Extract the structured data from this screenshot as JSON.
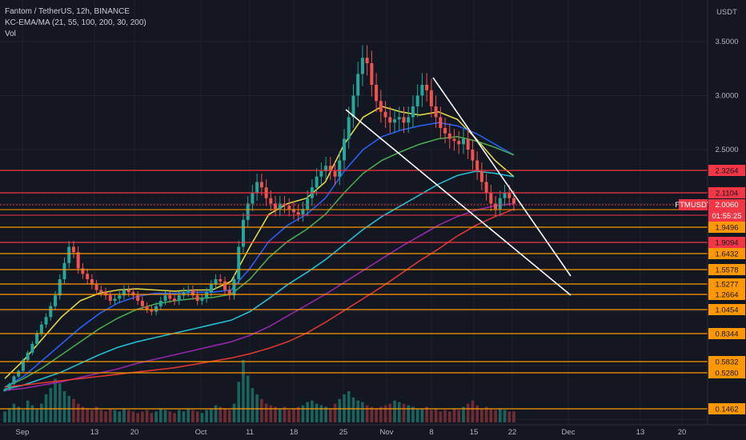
{
  "header": {
    "symbol_line": "Fantom / TetherUS, 12h, BINANCE",
    "indicator_line": "KC-EMA/MA (21, 55, 100, 200, 30, 200)",
    "volume_line": "Vol",
    "currency": "USDT"
  },
  "chart_data": {
    "type": "line",
    "title": "Fantom / TetherUS, 12h, BINANCE",
    "y_ticks": [
      "3.5000",
      "3.0000",
      "2.5000"
    ],
    "x_ticks": [
      "Sep",
      "13",
      "20",
      "Oct",
      "11",
      "18",
      "25",
      "Nov",
      "8",
      "15",
      "22",
      "Dec",
      "13",
      "20"
    ],
    "grid": true,
    "current_price": {
      "symbol": "FTMUSDT",
      "value": "2.0060",
      "countdown": "01:55:25",
      "color": "#f23645"
    },
    "levels": [
      {
        "label": "2.3264",
        "color": "#f23645"
      },
      {
        "label": "2.1104",
        "color": "#f23645"
      },
      {
        "label": "1.9496",
        "color": "#ff9800"
      },
      {
        "label": "1.9094",
        "color": "#f23645"
      },
      {
        "label": "1.6432",
        "color": "#ff9800"
      },
      {
        "label": "1.5578",
        "color": "#ff9800"
      },
      {
        "label": "1.5277",
        "color": "#ff9800"
      },
      {
        "label": "1.2664",
        "color": "#ff9800"
      },
      {
        "label": "1.0454",
        "color": "#ff9800"
      },
      {
        "label": "0.8344",
        "color": "#ff9800"
      },
      {
        "label": "0.5832",
        "color": "#ff9800"
      },
      {
        "label": "0.5280",
        "color": "#ff9800"
      },
      {
        "label": "0.1462",
        "color": "#ff9800"
      }
    ],
    "price_series": [
      0.28,
      0.33,
      0.4,
      0.45,
      0.55,
      0.62,
      0.7,
      0.8,
      0.88,
      0.95,
      1.05,
      1.15,
      1.3,
      1.45,
      1.6,
      1.55,
      1.4,
      1.35,
      1.3,
      1.25,
      1.2,
      1.18,
      1.15,
      1.1,
      1.12,
      1.15,
      1.2,
      1.18,
      1.15,
      1.1,
      1.05,
      1.02,
      1.0,
      1.05,
      1.1,
      1.15,
      1.12,
      1.1,
      1.15,
      1.18,
      1.2,
      1.15,
      1.1,
      1.12,
      1.18,
      1.25,
      1.3,
      1.28,
      1.2,
      1.15,
      1.3,
      1.6,
      1.85,
      2.0,
      2.1,
      2.2,
      2.15,
      2.05,
      2.0,
      1.95,
      2.0,
      1.98,
      1.95,
      1.92,
      1.9,
      1.95,
      2.05,
      2.15,
      2.25,
      2.3,
      2.35,
      2.3,
      2.25,
      2.4,
      2.6,
      2.8,
      3.0,
      3.2,
      3.35,
      3.3,
      3.1,
      2.95,
      2.85,
      2.8,
      2.75,
      2.78,
      2.8,
      2.75,
      2.8,
      2.9,
      3.0,
      3.1,
      3.05,
      2.9,
      2.8,
      2.7,
      2.65,
      2.6,
      2.58,
      2.55,
      2.6,
      2.5,
      2.4,
      2.3,
      2.2,
      2.1,
      2.0,
      1.95,
      2.05,
      2.1,
      2.05,
      2.0
    ],
    "series": [
      {
        "name": "EMA 21",
        "color": "#e8e24a",
        "values": [
          0.38,
          0.55,
          0.75,
          0.95,
          1.1,
          1.17,
          1.2,
          1.21,
          1.2,
          1.19,
          1.2,
          1.2,
          1.28,
          1.6,
          1.9,
          2.0,
          2.05,
          2.2,
          2.55,
          2.8,
          2.9,
          2.85,
          2.82,
          2.85,
          2.78,
          2.6,
          2.4,
          2.25
        ]
      },
      {
        "name": "EMA 55",
        "color": "#2962ff",
        "values": [
          0.3,
          0.4,
          0.55,
          0.7,
          0.85,
          0.98,
          1.08,
          1.14,
          1.17,
          1.17,
          1.18,
          1.18,
          1.2,
          1.4,
          1.65,
          1.8,
          1.9,
          2.05,
          2.3,
          2.5,
          2.62,
          2.68,
          2.72,
          2.75,
          2.72,
          2.65,
          2.55,
          2.45
        ]
      },
      {
        "name": "EMA 100",
        "color": "#4caf50",
        "values": [
          0.3,
          0.38,
          0.48,
          0.6,
          0.72,
          0.84,
          0.94,
          1.02,
          1.07,
          1.1,
          1.12,
          1.13,
          1.16,
          1.3,
          1.5,
          1.65,
          1.76,
          1.9,
          2.1,
          2.28,
          2.4,
          2.48,
          2.55,
          2.6,
          2.62,
          2.58,
          2.52,
          2.45
        ]
      },
      {
        "name": "EMA 200",
        "color": "#26c6da",
        "values": [
          0.28,
          0.32,
          0.38,
          0.44,
          0.52,
          0.6,
          0.67,
          0.72,
          0.76,
          0.8,
          0.84,
          0.88,
          0.92,
          1.0,
          1.12,
          1.25,
          1.36,
          1.48,
          1.62,
          1.76,
          1.88,
          1.98,
          2.08,
          2.18,
          2.26,
          2.3,
          2.28,
          2.25
        ]
      },
      {
        "name": "EMA 30",
        "color": "#9c27b0",
        "values": [
          0.27,
          0.29,
          0.32,
          0.35,
          0.39,
          0.43,
          0.47,
          0.52,
          0.56,
          0.6,
          0.64,
          0.68,
          0.72,
          0.78,
          0.86,
          0.96,
          1.06,
          1.16,
          1.27,
          1.38,
          1.49,
          1.6,
          1.7,
          1.8,
          1.88,
          1.94,
          1.98,
          2.0
        ]
      },
      {
        "name": "MA 200",
        "color": "#e53935",
        "values": [
          0.3,
          0.32,
          0.34,
          0.36,
          0.38,
          0.4,
          0.42,
          0.44,
          0.46,
          0.48,
          0.51,
          0.54,
          0.57,
          0.61,
          0.66,
          0.72,
          0.8,
          0.9,
          1.01,
          1.12,
          1.23,
          1.35,
          1.47,
          1.58,
          1.7,
          1.8,
          1.88,
          1.95
        ]
      }
    ],
    "trendlines": [
      {
        "name": "falling-wedge-upper",
        "from": [
          "Nov 8",
          3.1
        ],
        "to": [
          "Nov 29",
          1.25
        ]
      },
      {
        "name": "falling-wedge-lower",
        "from": [
          "Oct 26",
          2.82
        ],
        "to": [
          "Nov 29",
          1.08
        ]
      }
    ],
    "volume": [
      7,
      9,
      12,
      10,
      8,
      14,
      11,
      9,
      12,
      18,
      22,
      28,
      25,
      20,
      17,
      15,
      12,
      10,
      9,
      8,
      10,
      8,
      7,
      9,
      8,
      7,
      9,
      8,
      7,
      6,
      7,
      8,
      6,
      7,
      9,
      8,
      7,
      6,
      8,
      7,
      9,
      8,
      7,
      6,
      8,
      9,
      11,
      10,
      9,
      8,
      12,
      26,
      40,
      30,
      22,
      18,
      15,
      12,
      11,
      10,
      9,
      10,
      8,
      9,
      10,
      11,
      13,
      14,
      12,
      11,
      10,
      9,
      12,
      15,
      18,
      20,
      16,
      14,
      13,
      11,
      10,
      9,
      10,
      11,
      12,
      14,
      13,
      12,
      11,
      10,
      9,
      9,
      10,
      8,
      9,
      7,
      8,
      7,
      9,
      8,
      10,
      12,
      14,
      11,
      9,
      10,
      9,
      8,
      9,
      8,
      7,
      7
    ]
  }
}
